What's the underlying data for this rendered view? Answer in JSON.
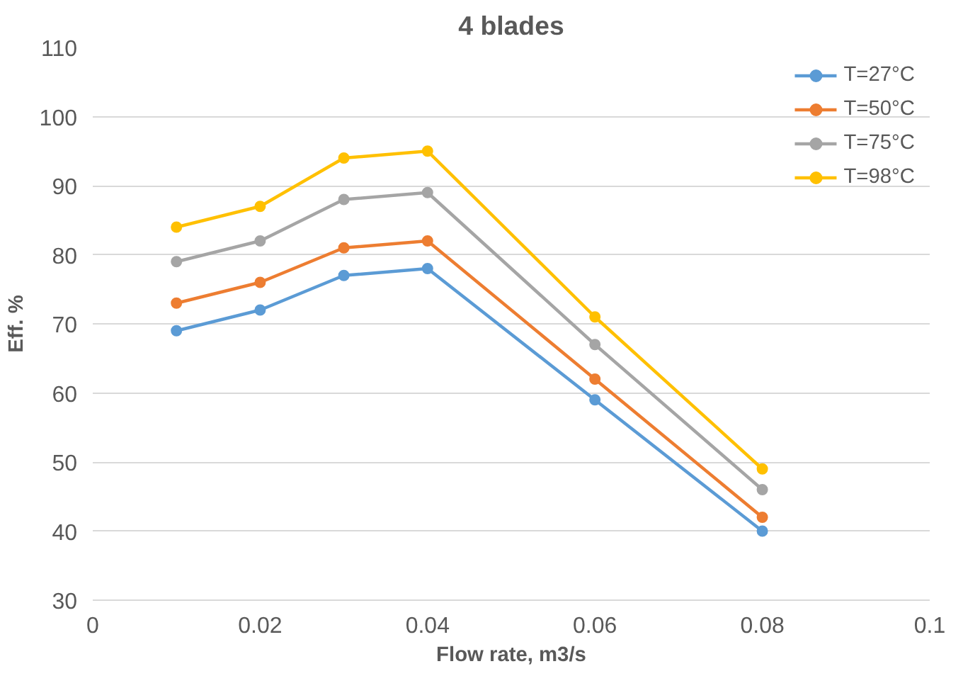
{
  "chart_data": {
    "type": "line",
    "title": "4 blades",
    "xlabel": "Flow rate, m3/s",
    "ylabel": "Eff. %",
    "x": [
      0.01,
      0.02,
      0.03,
      0.04,
      0.06,
      0.08
    ],
    "series": [
      {
        "name": "T=27°C",
        "color": "#5b9bd5",
        "values": [
          69,
          72,
          77,
          78,
          59,
          40
        ]
      },
      {
        "name": "T=50°C",
        "color": "#ed7d31",
        "values": [
          73,
          76,
          81,
          82,
          62,
          42
        ]
      },
      {
        "name": "T=75°C",
        "color": "#a5a5a5",
        "values": [
          79,
          82,
          88,
          89,
          67,
          46
        ]
      },
      {
        "name": "T=98°C",
        "color": "#ffc000",
        "values": [
          84,
          87,
          94,
          95,
          71,
          49
        ]
      }
    ],
    "xlim": [
      0,
      0.1
    ],
    "xticks": [
      0,
      0.02,
      0.04,
      0.06,
      0.08,
      0.1
    ],
    "ylim": [
      30,
      110
    ],
    "yticks": [
      30,
      40,
      50,
      60,
      70,
      80,
      90,
      100,
      110
    ],
    "grid": "y",
    "legend": "top right",
    "marker": "circle",
    "line_style": "solid"
  }
}
